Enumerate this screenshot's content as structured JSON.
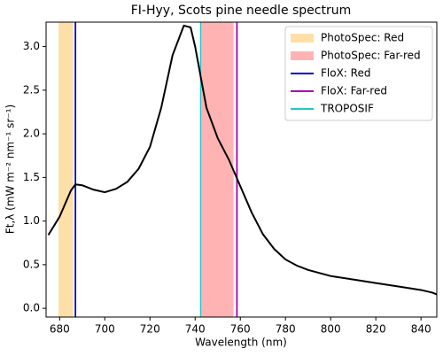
{
  "chart_data": {
    "type": "line",
    "title": "FI-Hyy, Scots pine needle spectrum",
    "xlabel": "Wavelength (nm)",
    "ylabel": "Ft,λ (mW m⁻² nm⁻¹ sr⁻¹)",
    "xlim": [
      674,
      847
    ],
    "ylim": [
      -0.1,
      3.28
    ],
    "xticks": [
      680,
      700,
      720,
      740,
      760,
      780,
      800,
      820,
      840
    ],
    "yticks": [
      {
        "value": 0,
        "label": "0.0"
      },
      {
        "value": 0.5,
        "label": "0.5"
      },
      {
        "value": 1,
        "label": "1.0"
      },
      {
        "value": 1.5,
        "label": "1.5"
      },
      {
        "value": 2,
        "label": "2.0"
      },
      {
        "value": 2.5,
        "label": "2.5"
      },
      {
        "value": 3,
        "label": "3.0"
      }
    ],
    "spans": [
      {
        "name": "PhotoSpec: Red",
        "color": "#ffdfa8",
        "range": [
          679.5,
          686
        ]
      },
      {
        "name": "PhotoSpec: Far-red",
        "color": "#ffb3b3",
        "range": [
          743,
          757
        ]
      }
    ],
    "vlines": [
      {
        "name": "FloX: Red",
        "color": "#0000cc",
        "x": 687
      },
      {
        "name": "FloX: Far-red",
        "color": "#aa00aa",
        "x": 758.5
      },
      {
        "name": "TROPOSIF",
        "color": "#22c7c7",
        "x": 742.5
      }
    ],
    "line": {
      "color": "#000000",
      "x": [
        675,
        680,
        685,
        687,
        690,
        695,
        700,
        705,
        710,
        715,
        720,
        725,
        730,
        735,
        738,
        740,
        745,
        750,
        755,
        760,
        765,
        770,
        775,
        780,
        785,
        790,
        800,
        810,
        820,
        830,
        840,
        845,
        847
      ],
      "values": [
        0.84,
        1.05,
        1.35,
        1.42,
        1.41,
        1.36,
        1.33,
        1.37,
        1.45,
        1.6,
        1.85,
        2.3,
        2.9,
        3.24,
        3.22,
        3.0,
        2.3,
        1.95,
        1.7,
        1.4,
        1.1,
        0.85,
        0.68,
        0.56,
        0.49,
        0.44,
        0.37,
        0.33,
        0.29,
        0.25,
        0.21,
        0.18,
        0.16
      ]
    }
  }
}
